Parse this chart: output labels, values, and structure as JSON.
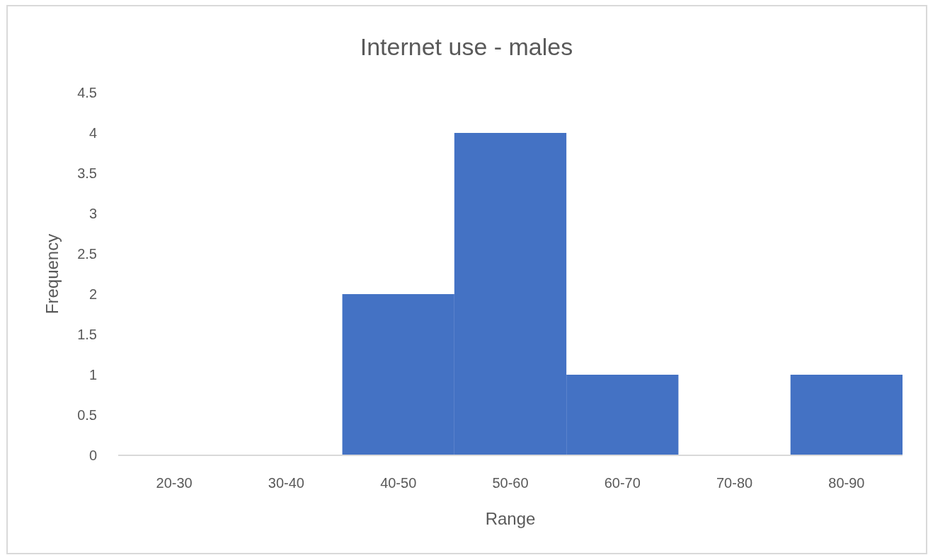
{
  "chart_data": {
    "type": "bar",
    "title": "Internet use - males",
    "xlabel": "Range",
    "ylabel": "Frequency",
    "categories": [
      "20-30",
      "30-40",
      "40-50",
      "50-60",
      "60-70",
      "70-80",
      "80-90"
    ],
    "values": [
      0,
      0,
      2,
      4,
      1,
      0,
      1
    ],
    "color": "#4472c4",
    "ylim": [
      0,
      4.5
    ],
    "yticks": [
      0,
      0.5,
      1,
      1.5,
      2,
      2.5,
      3,
      3.5,
      4,
      4.5
    ],
    "grid": false
  }
}
